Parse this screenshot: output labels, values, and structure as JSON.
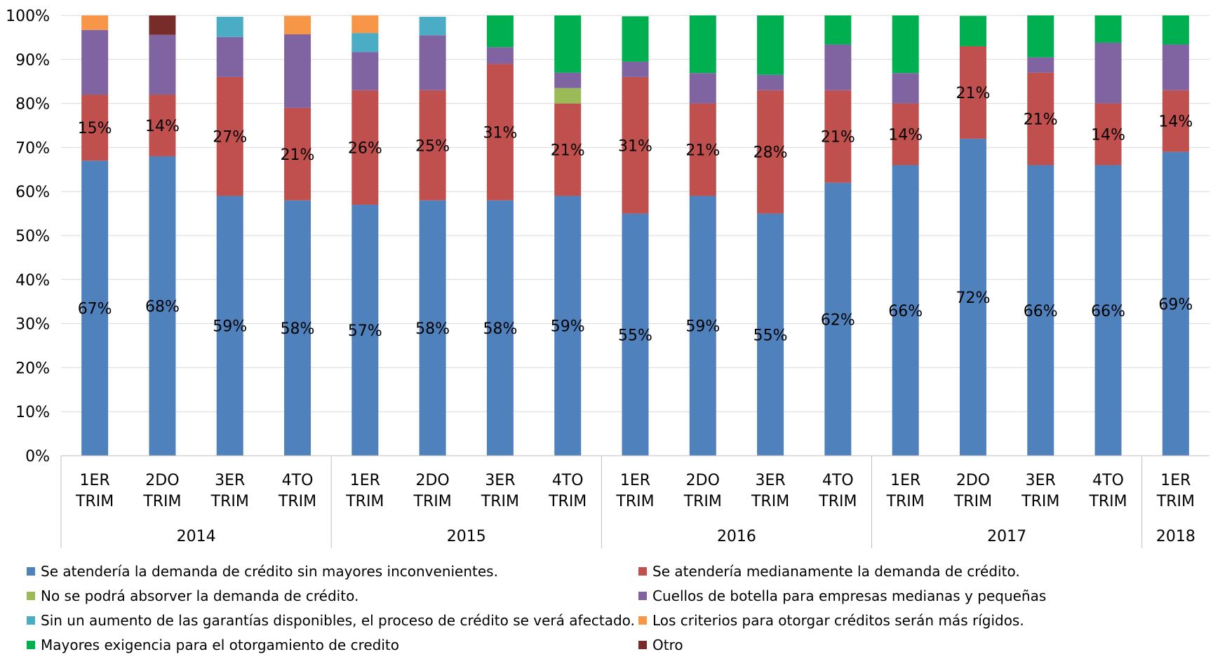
{
  "chart_data": {
    "type": "stacked_bar_percent",
    "ylim": [
      0,
      100
    ],
    "yticks": [
      "0%",
      "10%",
      "20%",
      "30%",
      "40%",
      "50%",
      "60%",
      "70%",
      "80%",
      "90%",
      "100%"
    ],
    "categories": [
      {
        "line1": "1ER",
        "line2": "TRIM"
      },
      {
        "line1": "2DO",
        "line2": "TRIM"
      },
      {
        "line1": "3ER",
        "line2": "TRIM"
      },
      {
        "line1": "4TO",
        "line2": "TRIM"
      },
      {
        "line1": "1ER",
        "line2": "TRIM"
      },
      {
        "line1": "2DO",
        "line2": "TRIM"
      },
      {
        "line1": "3ER",
        "line2": "TRIM"
      },
      {
        "line1": "4TO",
        "line2": "TRIM"
      },
      {
        "line1": "1ER",
        "line2": "TRIM"
      },
      {
        "line1": "2DO",
        "line2": "TRIM"
      },
      {
        "line1": "3ER",
        "line2": "TRIM"
      },
      {
        "line1": "4TO",
        "line2": "TRIM"
      },
      {
        "line1": "1ER",
        "line2": "TRIM"
      },
      {
        "line1": "2DO",
        "line2": "TRIM"
      },
      {
        "line1": "3ER",
        "line2": "TRIM"
      },
      {
        "line1": "4TO",
        "line2": "TRIM"
      },
      {
        "line1": "1ER",
        "line2": "TRIM"
      }
    ],
    "year_groups": [
      {
        "label": "2014",
        "count": 4
      },
      {
        "label": "2015",
        "count": 4
      },
      {
        "label": "2016",
        "count": 4
      },
      {
        "label": "2017",
        "count": 4
      },
      {
        "label": "2018",
        "count": 1
      }
    ],
    "series": [
      {
        "name": "Se atendería la demanda de crédito sin mayores inconvenientes.",
        "color": "#4F81BD",
        "values": [
          67,
          68,
          59,
          58,
          57,
          58,
          58,
          59,
          55,
          59,
          55,
          62,
          66,
          72,
          66,
          66,
          69
        ],
        "labels": [
          "67%",
          "68%",
          "59%",
          "58%",
          "57%",
          "58%",
          "58%",
          "59%",
          "55%",
          "59%",
          "55%",
          "62%",
          "66%",
          "72%",
          "66%",
          "66%",
          "69%"
        ]
      },
      {
        "name": "Se atendería medianamente la demanda de crédito.",
        "color": "#C0504D",
        "values": [
          15,
          14,
          27,
          21,
          26,
          25,
          31,
          21,
          31,
          21,
          28,
          21,
          14,
          21,
          21,
          14,
          14
        ],
        "labels": [
          "15%",
          "14%",
          "27%",
          "21%",
          "26%",
          "25%",
          "31%",
          "21%",
          "31%",
          "21%",
          "28%",
          "21%",
          "14%",
          "21%",
          "21%",
          "14%",
          "14%"
        ]
      },
      {
        "name": "No se podrá absorver la demanda de crédito.",
        "color": "#9BBB59",
        "values": [
          0,
          0,
          0,
          0,
          0,
          0,
          0,
          3.5,
          0,
          0,
          0,
          0,
          0,
          0,
          0,
          0,
          0
        ]
      },
      {
        "name": "Cuellos de botella para empresas medianas y pequeñas",
        "color": "#8064A2",
        "values": [
          14.7,
          13.6,
          9.1,
          16.7,
          8.7,
          12.5,
          3.8,
          3.5,
          3.5,
          6.9,
          3.5,
          10.4,
          6.9,
          0,
          3.5,
          13.8,
          10.4
        ]
      },
      {
        "name": "Sin un aumento de las garantías disponibles, el proceso de crédito se verá afectado.",
        "color": "#4BACC6",
        "values": [
          0,
          0,
          4.6,
          0,
          4.3,
          4.2,
          0,
          0,
          0,
          0,
          0,
          0,
          0,
          0,
          0,
          0,
          0
        ]
      },
      {
        "name": "Los criterios para otorgar créditos serán más rígidos.",
        "color": "#F79646",
        "values": [
          3.6,
          0,
          0,
          4.2,
          4.3,
          0,
          0,
          0,
          0,
          0,
          0,
          0,
          0,
          0,
          0,
          0,
          0
        ]
      },
      {
        "name": "Mayores exigencia para el otorgamiento de credito",
        "color": "#00B050",
        "values": [
          0,
          0,
          0,
          0,
          0,
          0,
          7.7,
          13.8,
          10.3,
          13.8,
          13.8,
          6.9,
          13.8,
          6.9,
          10.3,
          6.9,
          6.9
        ]
      },
      {
        "name": "Otro",
        "color": "#772C2A",
        "values": [
          0,
          4.5,
          0,
          0,
          0,
          0,
          0,
          0,
          0,
          0,
          0,
          0,
          0,
          0,
          0,
          0,
          0
        ]
      }
    ],
    "legend": [
      "Se atendería la demanda de crédito sin mayores inconvenientes.",
      "Se atendería medianamente la demanda de crédito.",
      "No se podrá absorver la demanda de crédito.",
      "Cuellos de botella para empresas medianas y pequeñas",
      "Sin un aumento de las garantías disponibles, el proceso de crédito se verá afectado.",
      "Los criterios para otorgar créditos serán más rígidos.",
      "Mayores exigencia para el otorgamiento de credito",
      "Otro"
    ],
    "legend_placement": "bottom",
    "grid": true
  }
}
